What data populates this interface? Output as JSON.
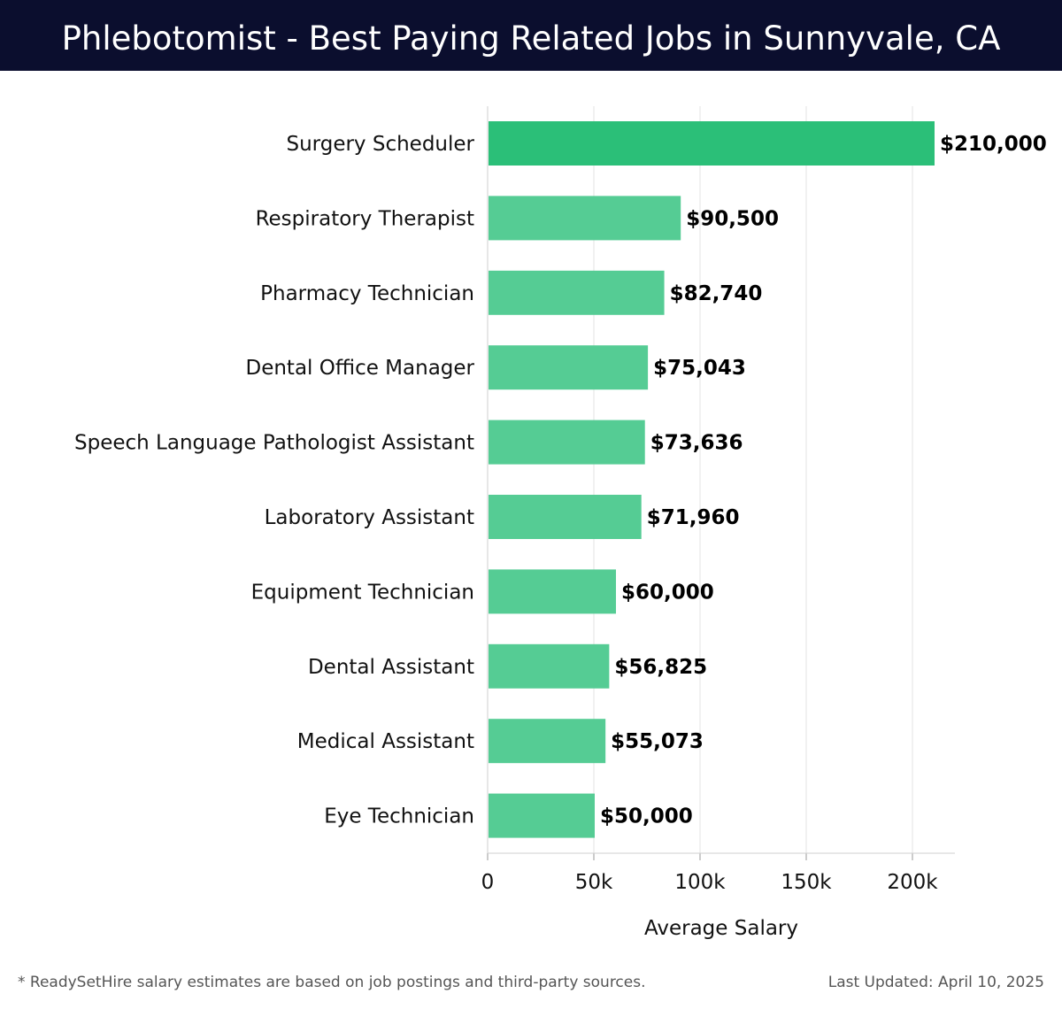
{
  "header": {
    "title": "Phlebotomist - Best Paying Related Jobs in Sunnyvale, CA"
  },
  "footer": {
    "note": "* ReadySetHire salary estimates are based on job postings and third-party sources.",
    "updated": "Last Updated: April 10, 2025"
  },
  "colors": {
    "header_bg": "#0b0e2e",
    "top_bar": "#2bbf78",
    "bar": "#55cc94",
    "grid": "#e3e3e3"
  },
  "chart_data": {
    "type": "bar",
    "orientation": "horizontal",
    "title": "Phlebotomist - Best Paying Related Jobs in Sunnyvale, CA",
    "xlabel": "Average Salary",
    "ylabel": "",
    "xlim": [
      0,
      220000
    ],
    "grid": true,
    "categories": [
      "Surgery Scheduler",
      "Respiratory Therapist",
      "Pharmacy Technician",
      "Dental Office Manager",
      "Speech Language Pathologist Assistant",
      "Laboratory Assistant",
      "Equipment Technician",
      "Dental Assistant",
      "Medical Assistant",
      "Eye Technician"
    ],
    "values": [
      210000,
      90500,
      82740,
      75043,
      73636,
      71960,
      60000,
      56825,
      55073,
      50000
    ],
    "value_labels": [
      "$210,000",
      "$90,500",
      "$82,740",
      "$75,043",
      "$73,636",
      "$71,960",
      "$60,000",
      "$56,825",
      "$55,073",
      "$50,000"
    ],
    "ticks": [
      0,
      50000,
      100000,
      150000,
      200000
    ],
    "tick_labels": [
      "0",
      "50k",
      "100k",
      "150k",
      "200k"
    ]
  }
}
